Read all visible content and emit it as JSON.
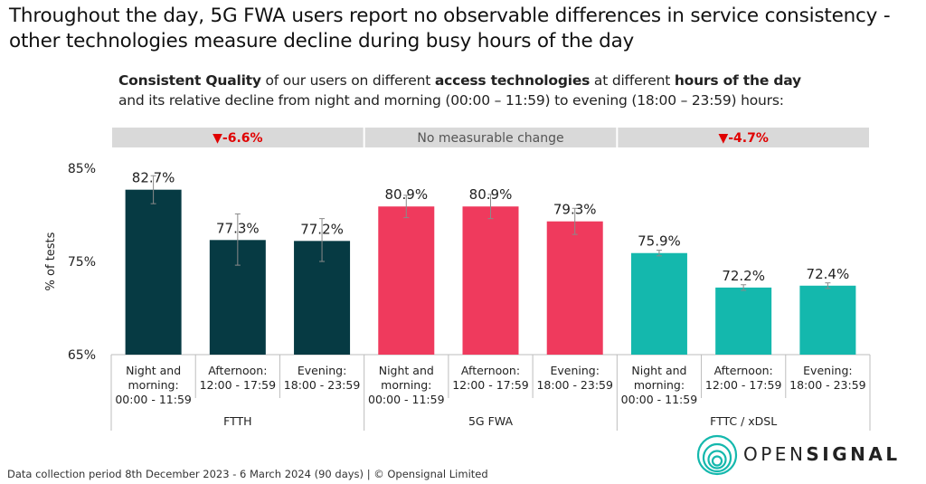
{
  "title": "Throughout the day, 5G FWA users report no observable differences in service consistency - other technologies measure decline during busy hours of the day",
  "subtitle": {
    "s1": "Consistent Quality",
    "s2": " of our users on different ",
    "s3": "access technologies",
    "s4": " at different ",
    "s5": "hours of the day",
    "line2": "and its relative decline from night and morning (00:00 – 11:59) to evening (18:00 – 23:59) hours:"
  },
  "chart_data": {
    "type": "bar",
    "ylabel": "% of tests",
    "ylim": [
      65,
      88
    ],
    "yticks": [
      65,
      75,
      85
    ],
    "ytick_labels": [
      "65%",
      "75%",
      "85%"
    ],
    "colors": {
      "FTTH": "#063a43",
      "5G FWA": "#ef3a5d",
      "FTTC / xDSL": "#14b8ad",
      "header_bg": "#d9d9d9",
      "decline": "#e00000"
    },
    "groups": [
      {
        "name": "FTTH",
        "header": "▼-6.6%",
        "header_type": "decline",
        "categories": [
          [
            "Night and",
            "morning:",
            "00:00 - 11:59"
          ],
          [
            "Afternoon:",
            "12:00 - 17:59"
          ],
          [
            "Evening:",
            "18:00 - 23:59"
          ]
        ],
        "values": [
          82.7,
          77.3,
          77.2
        ],
        "labels": [
          "82.7%",
          "77.3%",
          "77.2%"
        ],
        "ci": [
          [
            81.2,
            84.2
          ],
          [
            74.6,
            80.1
          ],
          [
            75.0,
            79.6
          ]
        ]
      },
      {
        "name": "5G FWA",
        "header": "No measurable change",
        "header_type": "neutral",
        "categories": [
          [
            "Night and",
            "morning:",
            "00:00 - 11:59"
          ],
          [
            "Afternoon:",
            "12:00 - 17:59"
          ],
          [
            "Evening:",
            "18:00 - 23:59"
          ]
        ],
        "values": [
          80.9,
          80.9,
          79.3
        ],
        "labels": [
          "80.9%",
          "80.9%",
          "79.3%"
        ],
        "ci": [
          [
            79.7,
            82.1
          ],
          [
            79.6,
            82.2
          ],
          [
            77.9,
            80.7
          ]
        ]
      },
      {
        "name": "FTTC / xDSL",
        "header": "▼-4.7%",
        "header_type": "decline",
        "categories": [
          [
            "Night and",
            "morning:",
            "00:00 - 11:59"
          ],
          [
            "Afternoon:",
            "12:00 - 17:59"
          ],
          [
            "Evening:",
            "18:00 - 23:59"
          ]
        ],
        "values": [
          75.9,
          72.2,
          72.4
        ],
        "labels": [
          "75.9%",
          "72.2%",
          "72.4%"
        ],
        "ci": [
          [
            75.6,
            76.2
          ],
          [
            71.9,
            72.5
          ],
          [
            72.1,
            72.7
          ]
        ]
      }
    ]
  },
  "footer": "Data collection period 8th December 2023 - 6 March 2024  (90 days)  |  © Opensignal Limited",
  "logo": {
    "part1": "OPEN",
    "part2": "SIGNAL",
    "color": "#14b8ad"
  }
}
